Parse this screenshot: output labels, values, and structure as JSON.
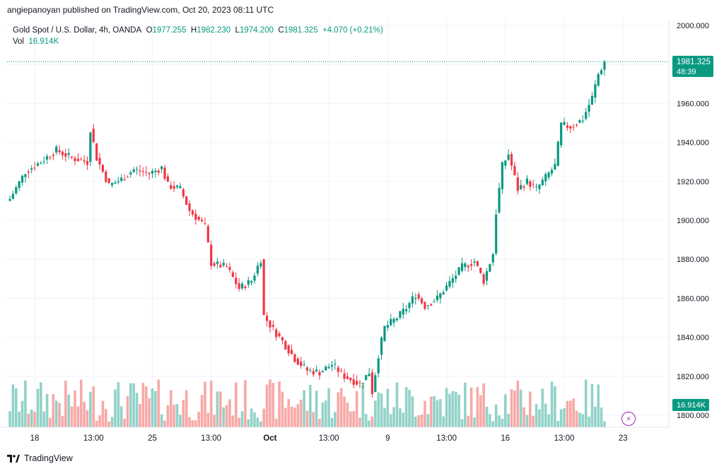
{
  "header": {
    "published": "angiepanoyan published on TradingView.com, Oct 20, 2023 08:11 UTC"
  },
  "legend": {
    "symbol": "Gold Spot / U.S. Dollar, 4h, OANDA",
    "o_label": "O",
    "o_value": "1977.255",
    "h_label": "H",
    "h_value": "1982.230",
    "l_label": "L",
    "l_value": "1974.200",
    "c_label": "C",
    "c_value": "1981.325",
    "change": "+4.070 (+0.21%)",
    "vol_label": "Vol",
    "vol_value": "16.914K"
  },
  "price_tag": {
    "price": "1981.325",
    "countdown": "48:39"
  },
  "vol_tag": "16.914K",
  "footer": {
    "brand": "TradingView"
  },
  "colors": {
    "up": "#089981",
    "down": "#f23645",
    "vol_up": "#92d2c8",
    "vol_down": "#f7a9a7",
    "grid": "#f0f3fa"
  },
  "icons": {
    "alert": "lightning-icon",
    "brand": "tradingview-logo-icon"
  },
  "chart_data": {
    "type": "candlestick",
    "ylim": [
      1795,
      2005
    ],
    "y_ticks": [
      1800,
      1820,
      1840,
      1860,
      1880,
      1900,
      1920,
      1940,
      1960,
      1980,
      2000
    ],
    "y_tick_labels": [
      "1800.000",
      "1820.000",
      "1840.000",
      "1860.000",
      "1880.000",
      "1900.000",
      "1920.000",
      "1940.000",
      "1960.000",
      "1980.000",
      "2000.000"
    ],
    "x_tick_labels": [
      {
        "label": "18",
        "bar": 8
      },
      {
        "label": "13:00",
        "bar": 27
      },
      {
        "label": "25",
        "bar": 46
      },
      {
        "label": "13:00",
        "bar": 65
      },
      {
        "label": "Oct",
        "bar": 84
      },
      {
        "label": "13:00",
        "bar": 103
      },
      {
        "label": "9",
        "bar": 122
      },
      {
        "label": "13:00",
        "bar": 141
      },
      {
        "label": "16",
        "bar": 160
      },
      {
        "label": "13:00",
        "bar": 179
      },
      {
        "label": "23",
        "bar": 198
      }
    ],
    "bar_count": 202,
    "anchors": [
      [
        0,
        1911
      ],
      [
        5,
        1925
      ],
      [
        10,
        1930
      ],
      [
        15,
        1936
      ],
      [
        20,
        1932
      ],
      [
        25,
        1930
      ],
      [
        26,
        1947
      ],
      [
        28,
        1932
      ],
      [
        32,
        1918
      ],
      [
        36,
        1921
      ],
      [
        40,
        1926
      ],
      [
        45,
        1924
      ],
      [
        49,
        1927
      ],
      [
        51,
        1918
      ],
      [
        55,
        1916
      ],
      [
        58,
        1905
      ],
      [
        63,
        1897
      ],
      [
        65,
        1878
      ],
      [
        70,
        1876
      ],
      [
        74,
        1865
      ],
      [
        78,
        1869
      ],
      [
        81,
        1880
      ],
      [
        82,
        1851
      ],
      [
        85,
        1844
      ],
      [
        88,
        1838
      ],
      [
        92,
        1829
      ],
      [
        96,
        1823
      ],
      [
        100,
        1822
      ],
      [
        104,
        1826
      ],
      [
        108,
        1820
      ],
      [
        113,
        1816
      ],
      [
        116,
        1822
      ],
      [
        117,
        1812
      ],
      [
        119,
        1831
      ],
      [
        121,
        1845
      ],
      [
        125,
        1850
      ],
      [
        128,
        1855
      ],
      [
        131,
        1862
      ],
      [
        134,
        1856
      ],
      [
        138,
        1860
      ],
      [
        142,
        1868
      ],
      [
        146,
        1876
      ],
      [
        150,
        1879
      ],
      [
        153,
        1869
      ],
      [
        156,
        1883
      ],
      [
        157,
        1904
      ],
      [
        159,
        1928
      ],
      [
        161,
        1934
      ],
      [
        164,
        1916
      ],
      [
        167,
        1920
      ],
      [
        170,
        1916
      ],
      [
        173,
        1922
      ],
      [
        176,
        1928
      ],
      [
        178,
        1949
      ],
      [
        181,
        1948
      ],
      [
        185,
        1952
      ],
      [
        188,
        1963
      ],
      [
        190,
        1975
      ],
      [
        192,
        1981.3
      ]
    ],
    "last": {
      "open": 1977.255,
      "high": 1982.23,
      "low": 1974.2,
      "close": 1981.325
    },
    "volume_max": 35,
    "volume_ticks": "relative"
  }
}
